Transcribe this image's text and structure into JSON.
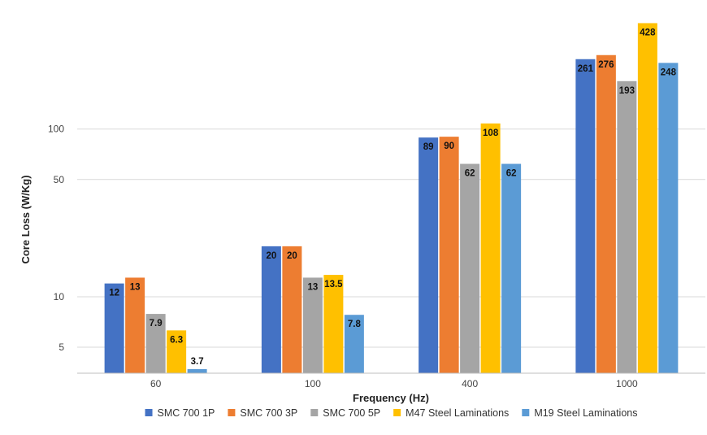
{
  "chart_data": {
    "type": "bar",
    "title": "",
    "xlabel": "Frequency (Hz)",
    "ylabel": "Core Loss (W/Kg)",
    "yscale": "log",
    "ylim": [
      3.5,
      460
    ],
    "yticks": [
      5,
      10,
      50,
      100
    ],
    "grid": true,
    "legend_position": "bottom",
    "categories": [
      "60",
      "100",
      "400",
      "1000"
    ],
    "series": [
      {
        "name": "SMC 700 1P",
        "color": "#4472C4",
        "values": [
          12,
          20,
          89,
          261
        ],
        "labels": [
          "12",
          "20",
          "89",
          "261"
        ]
      },
      {
        "name": "SMC 700 3P",
        "color": "#ED7D31",
        "values": [
          13,
          20,
          90,
          276
        ],
        "labels": [
          "13",
          "20",
          "90",
          "276"
        ]
      },
      {
        "name": "SMC 700 5P",
        "color": "#A5A5A5",
        "values": [
          7.9,
          13,
          62,
          193
        ],
        "labels": [
          "7.9",
          "13",
          "62",
          "193"
        ]
      },
      {
        "name": "M47 Steel Laminations",
        "color": "#FFC000",
        "values": [
          6.3,
          13.5,
          108,
          428
        ],
        "labels": [
          "6.3",
          "13.5",
          "108",
          "428"
        ]
      },
      {
        "name": "M19 Steel Laminations",
        "color": "#5B9BD5",
        "values": [
          3.7,
          7.8,
          62,
          248
        ],
        "labels": [
          "3.7",
          "7.8",
          "62",
          "248"
        ]
      }
    ]
  }
}
